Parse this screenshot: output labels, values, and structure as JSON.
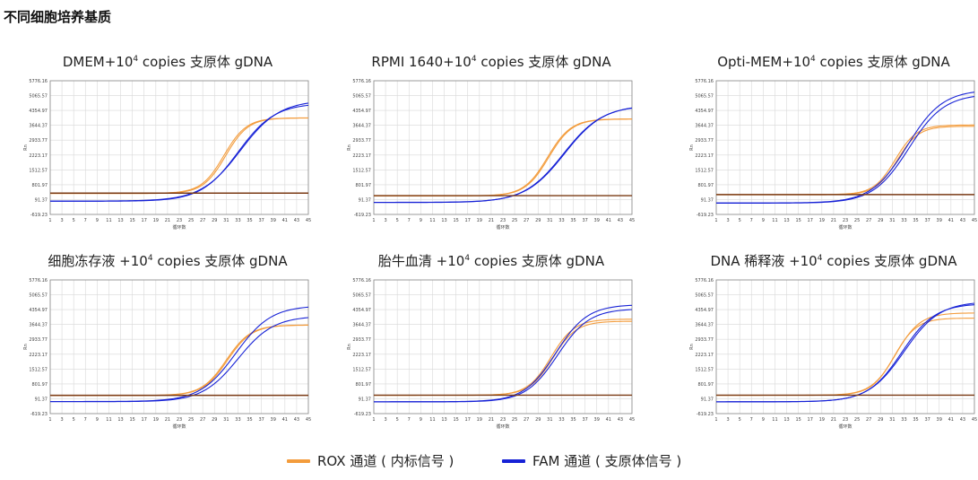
{
  "page_title": "不同细胞培养基质",
  "colors": {
    "rox": "#f39c3c",
    "fam": "#1722d6",
    "axis": "#888888",
    "grid": "#d8d8d8"
  },
  "chart_data": [
    {
      "type": "line",
      "title_pre": "DMEM+10",
      "title_sup": "4",
      "title_post": " copies 支原体 gDNA",
      "ylabel": "Rn",
      "xlabel": "循环数",
      "yticks": [
        "5776.16",
        "5065.57",
        "4354.97",
        "3644.37",
        "2933.77",
        "2223.17",
        "1512.57",
        "801.97",
        "91.37",
        "-619.23"
      ],
      "xticks": [
        "1",
        "3",
        "5",
        "7",
        "9",
        "11",
        "13",
        "15",
        "17",
        "19",
        "21",
        "23",
        "25",
        "27",
        "29",
        "31",
        "33",
        "35",
        "37",
        "39",
        "41",
        "43",
        "45"
      ],
      "xlim": [
        1,
        45
      ],
      "ylim": [
        -619.23,
        5776.16
      ],
      "series": [
        {
          "name": "ROX",
          "kind": "rox",
          "base": 391,
          "top": 4000,
          "mid": 30.6,
          "k": 0.52
        },
        {
          "name": "ROX",
          "kind": "rox",
          "base": 380,
          "top": 3995,
          "mid": 30.9,
          "k": 0.52
        },
        {
          "name": "FAM",
          "kind": "fam",
          "base": 10,
          "top": 4700,
          "mid": 33.0,
          "k": 0.32
        },
        {
          "name": "FAM",
          "kind": "fam",
          "base": 20,
          "top": 4850,
          "mid": 33.4,
          "k": 0.3
        },
        {
          "name": "flat",
          "kind": "flat",
          "base": 400,
          "top": 0,
          "mid": 30,
          "k": 1
        }
      ]
    },
    {
      "type": "line",
      "title_pre": "RPMI 1640+10",
      "title_sup": "4",
      "title_post": " copies 支原体 gDNA",
      "ylabel": "Rn",
      "xlabel": "循环数",
      "yticks": [
        "5776.16",
        "5065.57",
        "4354.97",
        "3644.37",
        "2933.77",
        "2223.17",
        "1512.57",
        "801.97",
        "91.37",
        "-619.23"
      ],
      "xticks": [
        "1",
        "3",
        "5",
        "7",
        "9",
        "11",
        "13",
        "15",
        "17",
        "19",
        "21",
        "23",
        "25",
        "27",
        "29",
        "31",
        "33",
        "35",
        "37",
        "39",
        "41",
        "43",
        "45"
      ],
      "xlim": [
        1,
        45
      ],
      "ylim": [
        -619.23,
        5776.16
      ],
      "series": [
        {
          "name": "ROX",
          "kind": "rox",
          "base": 270,
          "top": 3950,
          "mid": 30.6,
          "k": 0.5
        },
        {
          "name": "ROX",
          "kind": "rox",
          "base": 265,
          "top": 3945,
          "mid": 30.8,
          "k": 0.5
        },
        {
          "name": "FAM",
          "kind": "fam",
          "base": -50,
          "top": 4600,
          "mid": 33.3,
          "k": 0.3
        },
        {
          "name": "FAM",
          "kind": "fam",
          "base": -40,
          "top": 4620,
          "mid": 33.5,
          "k": 0.3
        },
        {
          "name": "flat",
          "kind": "flat",
          "base": 280,
          "top": 0,
          "mid": 30,
          "k": 1
        }
      ]
    },
    {
      "type": "line",
      "title_pre": "Opti-MEM+10",
      "title_sup": "4",
      "title_post": " copies 支原体 gDNA",
      "ylabel": "Rn",
      "xlabel": "循环数",
      "yticks": [
        "5776.16",
        "5065.57",
        "4354.97",
        "3644.37",
        "2933.77",
        "2223.17",
        "1512.57",
        "801.97",
        "91.37",
        "-619.23"
      ],
      "xticks": [
        "1",
        "3",
        "5",
        "7",
        "9",
        "11",
        "13",
        "15",
        "17",
        "19",
        "21",
        "23",
        "25",
        "27",
        "29",
        "31",
        "33",
        "35",
        "37",
        "39",
        "41",
        "43",
        "45"
      ],
      "xlim": [
        1,
        45
      ],
      "ylim": [
        -619.23,
        5776.16
      ],
      "series": [
        {
          "name": "ROX",
          "kind": "rox",
          "base": 330,
          "top": 3660,
          "mid": 31.5,
          "k": 0.55
        },
        {
          "name": "ROX",
          "kind": "rox",
          "base": 320,
          "top": 3600,
          "mid": 31.8,
          "k": 0.55
        },
        {
          "name": "FAM",
          "kind": "fam",
          "base": -80,
          "top": 5150,
          "mid": 33.8,
          "k": 0.33
        },
        {
          "name": "FAM",
          "kind": "fam",
          "base": -70,
          "top": 5350,
          "mid": 33.5,
          "k": 0.33
        },
        {
          "name": "flat",
          "kind": "flat",
          "base": 330,
          "top": 0,
          "mid": 30,
          "k": 1
        }
      ]
    },
    {
      "type": "line",
      "title_pre": "细胞冻存液 +10",
      "title_sup": "4",
      "title_post": " copies 支原体 gDNA",
      "ylabel": "Rn",
      "xlabel": "循环数",
      "yticks": [
        "5776.16",
        "5065.57",
        "4354.97",
        "3644.37",
        "2933.77",
        "2223.17",
        "1512.57",
        "801.97",
        "91.37",
        "-619.23"
      ],
      "xticks": [
        "1",
        "3",
        "5",
        "7",
        "9",
        "11",
        "13",
        "15",
        "17",
        "19",
        "21",
        "23",
        "25",
        "27",
        "29",
        "31",
        "33",
        "35",
        "37",
        "39",
        "41",
        "43",
        "45"
      ],
      "xlim": [
        1,
        45
      ],
      "ylim": [
        -619.23,
        5776.16
      ],
      "series": [
        {
          "name": "ROX",
          "kind": "rox",
          "base": 250,
          "top": 3620,
          "mid": 31.0,
          "k": 0.48
        },
        {
          "name": "ROX",
          "kind": "rox",
          "base": 245,
          "top": 3615,
          "mid": 31.2,
          "k": 0.48
        },
        {
          "name": "FAM",
          "kind": "fam",
          "base": -50,
          "top": 4050,
          "mid": 33.0,
          "k": 0.33
        },
        {
          "name": "FAM",
          "kind": "fam",
          "base": -40,
          "top": 4550,
          "mid": 32.6,
          "k": 0.33
        },
        {
          "name": "flat",
          "kind": "flat",
          "base": 255,
          "top": 0,
          "mid": 30,
          "k": 1
        }
      ]
    },
    {
      "type": "line",
      "title_pre": "胎牛血清 +10",
      "title_sup": "4",
      "title_post": " copies 支原体 gDNA",
      "ylabel": "Rn",
      "xlabel": "循环数",
      "yticks": [
        "5776.16",
        "5065.57",
        "4354.97",
        "3644.37",
        "2933.77",
        "2223.17",
        "1512.57",
        "801.97",
        "91.37",
        "-619.23"
      ],
      "xticks": [
        "1",
        "3",
        "5",
        "7",
        "9",
        "11",
        "13",
        "15",
        "17",
        "19",
        "21",
        "23",
        "25",
        "27",
        "29",
        "31",
        "33",
        "35",
        "37",
        "39",
        "41",
        "43",
        "45"
      ],
      "xlim": [
        1,
        45
      ],
      "ylim": [
        -619.23,
        5776.16
      ],
      "series": [
        {
          "name": "ROX",
          "kind": "rox",
          "base": 260,
          "top": 3800,
          "mid": 31.5,
          "k": 0.5
        },
        {
          "name": "ROX",
          "kind": "rox",
          "base": 255,
          "top": 3900,
          "mid": 31.2,
          "k": 0.5
        },
        {
          "name": "FAM",
          "kind": "fam",
          "base": -60,
          "top": 4400,
          "mid": 32.3,
          "k": 0.37
        },
        {
          "name": "FAM",
          "kind": "fam",
          "base": -50,
          "top": 4600,
          "mid": 32.0,
          "k": 0.37
        },
        {
          "name": "flat",
          "kind": "flat",
          "base": 265,
          "top": 0,
          "mid": 30,
          "k": 1
        }
      ]
    },
    {
      "type": "line",
      "title_pre": "DNA 稀释液 +10",
      "title_sup": "4",
      "title_post": " copies 支原体 gDNA",
      "ylabel": "Rn",
      "xlabel": "循环数",
      "yticks": [
        "5776.16",
        "5065.57",
        "4354.97",
        "3644.37",
        "2933.77",
        "2223.17",
        "1512.57",
        "801.97",
        "91.37",
        "-619.23"
      ],
      "xticks": [
        "1",
        "3",
        "5",
        "7",
        "9",
        "11",
        "13",
        "15",
        "17",
        "19",
        "21",
        "23",
        "25",
        "27",
        "29",
        "31",
        "33",
        "35",
        "37",
        "39",
        "41",
        "43",
        "45"
      ],
      "xlim": [
        1,
        45
      ],
      "ylim": [
        -619.23,
        5776.16
      ],
      "series": [
        {
          "name": "ROX",
          "kind": "rox",
          "base": 260,
          "top": 3950,
          "mid": 31.3,
          "k": 0.52
        },
        {
          "name": "ROX",
          "kind": "rox",
          "base": 255,
          "top": 4200,
          "mid": 31.6,
          "k": 0.48
        },
        {
          "name": "FAM",
          "kind": "fam",
          "base": -60,
          "top": 4750,
          "mid": 33.0,
          "k": 0.33
        },
        {
          "name": "FAM",
          "kind": "fam",
          "base": -50,
          "top": 4650,
          "mid": 32.6,
          "k": 0.35
        },
        {
          "name": "flat",
          "kind": "flat",
          "base": 265,
          "top": 0,
          "mid": 30,
          "k": 1
        }
      ]
    }
  ],
  "legend": [
    {
      "label": "ROX 通道 ( 内标信号 )",
      "kind": "rox"
    },
    {
      "label": "FAM 通道 ( 支原体信号 )",
      "kind": "fam"
    }
  ]
}
